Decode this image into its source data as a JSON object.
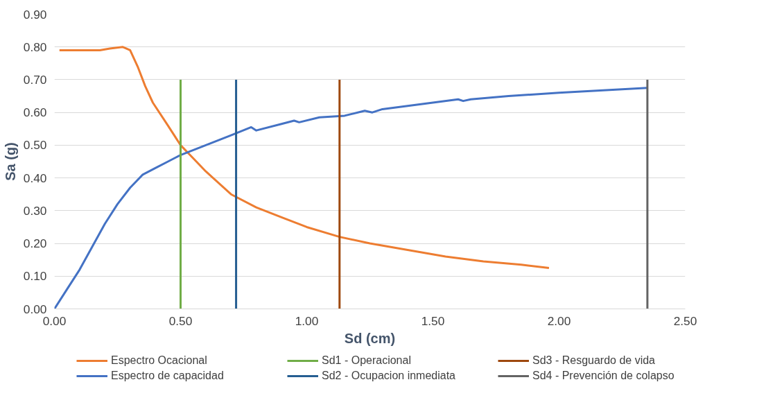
{
  "chart_data": {
    "type": "line",
    "xlabel": "Sd (cm)",
    "ylabel": "Sa (g)",
    "xlim": [
      0,
      2.5
    ],
    "ylim": [
      0,
      0.9
    ],
    "xticks": [
      {
        "value": 0,
        "label": "0.00"
      },
      {
        "value": 0.5,
        "label": "0.50"
      },
      {
        "value": 1,
        "label": "1.00"
      },
      {
        "value": 1.5,
        "label": "1.50"
      },
      {
        "value": 2,
        "label": "2.00"
      },
      {
        "value": 2.5,
        "label": "2.50"
      }
    ],
    "yticks": [
      {
        "value": 0,
        "label": "0.00"
      },
      {
        "value": 0.1,
        "label": "0.10"
      },
      {
        "value": 0.2,
        "label": "0.20"
      },
      {
        "value": 0.3,
        "label": "0.30"
      },
      {
        "value": 0.4,
        "label": "0.40"
      },
      {
        "value": 0.5,
        "label": "0.50"
      },
      {
        "value": 0.6,
        "label": "0.60"
      },
      {
        "value": 0.7,
        "label": "0.70"
      },
      {
        "value": 0.8,
        "label": "0.80"
      },
      {
        "value": 0.9,
        "label": "0.90"
      }
    ],
    "grid": "y",
    "legend": "bottom",
    "line_style": "solid",
    "marker": "none",
    "series": [
      {
        "name": "Espectro Ocacional",
        "color": "#ed7d31",
        "x": [
          0.02,
          0.18,
          0.22,
          0.27,
          0.3,
          0.33,
          0.36,
          0.39,
          0.45,
          0.5,
          0.55,
          0.6,
          0.7,
          0.8,
          0.9,
          1.0,
          1.13,
          1.25,
          1.4,
          1.55,
          1.7,
          1.85,
          1.96
        ],
        "values": [
          0.79,
          0.79,
          0.795,
          0.8,
          0.79,
          0.74,
          0.68,
          0.63,
          0.56,
          0.5,
          0.46,
          0.42,
          0.35,
          0.31,
          0.28,
          0.25,
          0.22,
          0.2,
          0.18,
          0.16,
          0.145,
          0.135,
          0.125
        ]
      },
      {
        "name": "Espectro de capacidad",
        "color": "#4472c4",
        "x": [
          0,
          0.05,
          0.1,
          0.15,
          0.2,
          0.25,
          0.3,
          0.35,
          0.4,
          0.45,
          0.5,
          0.6,
          0.7,
          0.78,
          0.8,
          0.9,
          0.95,
          0.97,
          1.05,
          1.15,
          1.23,
          1.26,
          1.3,
          1.4,
          1.5,
          1.6,
          1.62,
          1.65,
          1.8,
          2.0,
          2.35
        ],
        "values": [
          0,
          0.06,
          0.12,
          0.19,
          0.26,
          0.32,
          0.37,
          0.41,
          0.43,
          0.45,
          0.47,
          0.5,
          0.53,
          0.555,
          0.545,
          0.565,
          0.575,
          0.57,
          0.585,
          0.59,
          0.605,
          0.6,
          0.61,
          0.62,
          0.63,
          0.64,
          0.635,
          0.64,
          0.65,
          0.66,
          0.675
        ]
      },
      {
        "name": "Sd1 - Operacional",
        "color": "#70ad47",
        "x": [
          0.5,
          0.5
        ],
        "values": [
          0,
          0.7
        ]
      },
      {
        "name": "Sd2 - Ocupacion inmediata",
        "color": "#255e91",
        "x": [
          0.72,
          0.72
        ],
        "values": [
          0,
          0.7
        ]
      },
      {
        "name": "Sd3 - Resguardo de vida",
        "color": "#9e480e",
        "x": [
          1.13,
          1.13
        ],
        "values": [
          0,
          0.7
        ]
      },
      {
        "name": "Sd4 - Prevención de colapso",
        "color": "#636363",
        "x": [
          2.35,
          2.35
        ],
        "values": [
          0,
          0.7
        ]
      }
    ]
  }
}
